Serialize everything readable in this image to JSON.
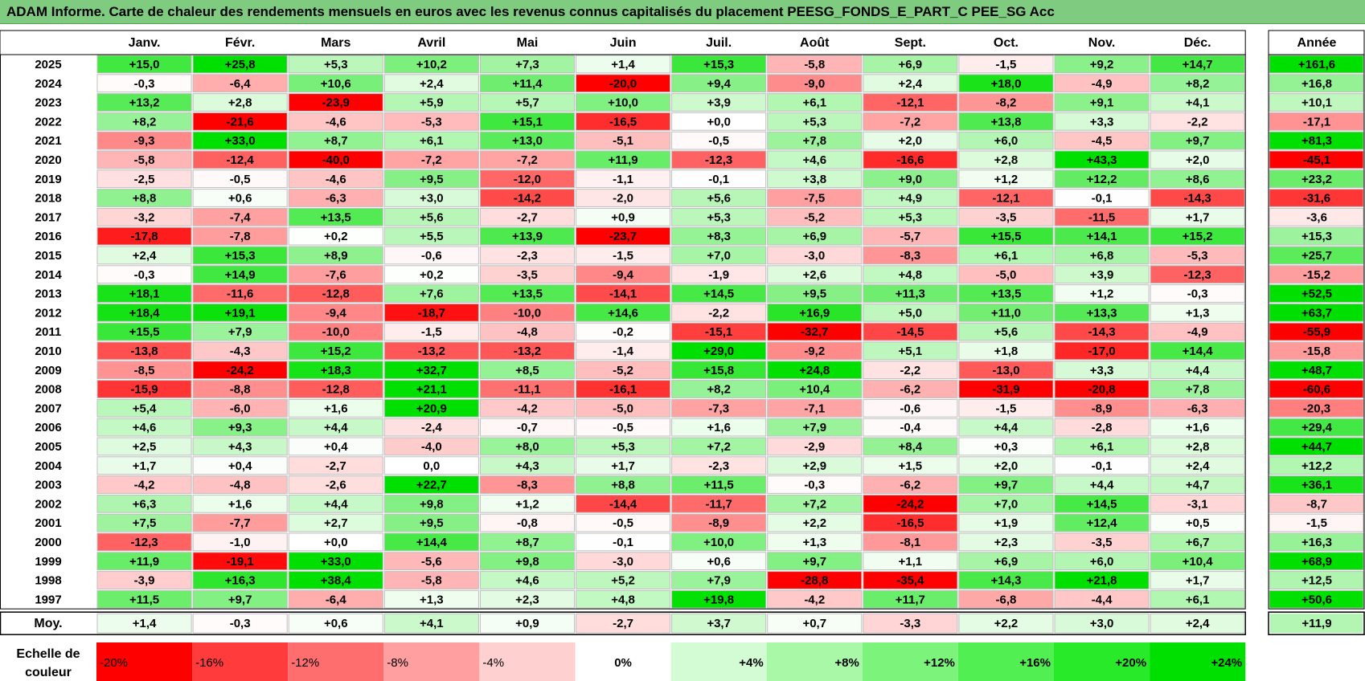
{
  "title": "ADAM Informe. Carte de chaleur des rendements mensuels en euros avec les revenus connus capitalisés du placement PEESG_FONDS_E_PART_C PEE_SG Acc",
  "chart_data": {
    "type": "heatmap",
    "title": "ADAM Informe. Carte de chaleur des rendements mensuels en euros avec les revenus connus capitalisés du placement PEESG_FONDS_E_PART_C PEE_SG Acc",
    "columns": [
      "Janv.",
      "Févr.",
      "Mars",
      "Avril",
      "Mai",
      "Juin",
      "Juil.",
      "Août",
      "Sept.",
      "Oct.",
      "Nov.",
      "Déc."
    ],
    "year_column_label": "Année",
    "rows": [
      {
        "year": "2025",
        "values": [
          "+15,0",
          "+25,8",
          "+5,3",
          "+10,2",
          "+7,3",
          "+1,4",
          "+15,3",
          "-5,8",
          "+6,9",
          "-1,5",
          "+9,2",
          "+14,7"
        ],
        "annual": "+161,6"
      },
      {
        "year": "2024",
        "values": [
          "-0,3",
          "-6,4",
          "+10,6",
          "+2,4",
          "+11,4",
          "-20,0",
          "+9,4",
          "-9,0",
          "+2,4",
          "+18,0",
          "-4,9",
          "+8,2"
        ],
        "annual": "+16,8"
      },
      {
        "year": "2023",
        "values": [
          "+13,2",
          "+2,8",
          "-23,9",
          "+5,9",
          "+5,7",
          "+10,0",
          "+3,9",
          "+6,1",
          "-12,1",
          "-8,2",
          "+9,1",
          "+4,1"
        ],
        "annual": "+10,1"
      },
      {
        "year": "2022",
        "values": [
          "+8,2",
          "-21,6",
          "-4,6",
          "-5,3",
          "+15,1",
          "-16,5",
          "+0,0",
          "+5,3",
          "-7,2",
          "+13,8",
          "+3,3",
          "-2,2"
        ],
        "annual": "-17,1"
      },
      {
        "year": "2021",
        "values": [
          "-9,3",
          "+33,0",
          "+8,7",
          "+6,1",
          "+13,0",
          "-5,1",
          "-0,5",
          "+7,8",
          "+2,0",
          "+6,0",
          "-4,5",
          "+9,7"
        ],
        "annual": "+81,3"
      },
      {
        "year": "2020",
        "values": [
          "-5,8",
          "-12,4",
          "-40,0",
          "-7,2",
          "-7,2",
          "+11,9",
          "-12,3",
          "+4,6",
          "-16,6",
          "+2,8",
          "+43,3",
          "+2,0"
        ],
        "annual": "-45,1"
      },
      {
        "year": "2019",
        "values": [
          "-2,5",
          "-0,5",
          "-4,6",
          "+9,5",
          "-12,0",
          "-1,1",
          "-0,1",
          "+3,8",
          "+9,0",
          "+1,2",
          "+12,2",
          "+8,6"
        ],
        "annual": "+23,2"
      },
      {
        "year": "2018",
        "values": [
          "+8,8",
          "+0,6",
          "-6,3",
          "+3,0",
          "-14,2",
          "-2,0",
          "+5,6",
          "-7,5",
          "+4,9",
          "-12,1",
          "-0,1",
          "-14,3"
        ],
        "annual": "-31,6"
      },
      {
        "year": "2017",
        "values": [
          "-3,2",
          "-7,4",
          "+13,5",
          "+5,6",
          "-2,7",
          "+0,9",
          "+5,3",
          "-5,2",
          "+5,3",
          "-3,5",
          "-11,5",
          "+1,7"
        ],
        "annual": "-3,6"
      },
      {
        "year": "2016",
        "values": [
          "-17,8",
          "-7,8",
          "+0,2",
          "+5,5",
          "+13,9",
          "-23,7",
          "+8,3",
          "+6,9",
          "-5,7",
          "+15,5",
          "+14,1",
          "+15,2"
        ],
        "annual": "+15,3"
      },
      {
        "year": "2015",
        "values": [
          "+2,4",
          "+15,3",
          "+8,9",
          "-0,6",
          "-2,3",
          "-1,5",
          "+7,0",
          "-3,0",
          "-8,3",
          "+6,1",
          "+6,8",
          "-5,3"
        ],
        "annual": "+25,7"
      },
      {
        "year": "2014",
        "values": [
          "-0,3",
          "+14,9",
          "-7,6",
          "+0,2",
          "-3,5",
          "-9,4",
          "-1,9",
          "+2,6",
          "+4,8",
          "-5,0",
          "+3,9",
          "-12,3"
        ],
        "annual": "-15,2"
      },
      {
        "year": "2013",
        "values": [
          "+18,1",
          "-11,6",
          "-12,8",
          "+7,6",
          "+13,5",
          "-14,1",
          "+14,5",
          "+9,5",
          "+11,3",
          "+13,5",
          "+1,2",
          "-0,3"
        ],
        "annual": "+52,5"
      },
      {
        "year": "2012",
        "values": [
          "+18,4",
          "+19,1",
          "-9,4",
          "-18,7",
          "-10,0",
          "+14,6",
          "-2,2",
          "+16,9",
          "+5,0",
          "+11,0",
          "+13,3",
          "+1,3"
        ],
        "annual": "+63,7"
      },
      {
        "year": "2011",
        "values": [
          "+15,5",
          "+7,9",
          "-10,0",
          "-1,5",
          "-4,8",
          "-0,2",
          "-15,1",
          "-32,7",
          "-14,5",
          "+5,6",
          "-14,3",
          "-4,9"
        ],
        "annual": "-55,9"
      },
      {
        "year": "2010",
        "values": [
          "-13,8",
          "-4,3",
          "+15,2",
          "-13,2",
          "-13,2",
          "-1,4",
          "+29,0",
          "-9,2",
          "+5,1",
          "+1,8",
          "-17,0",
          "+14,4"
        ],
        "annual": "-15,8"
      },
      {
        "year": "2009",
        "values": [
          "-8,5",
          "-24,2",
          "+18,3",
          "+32,7",
          "+8,5",
          "-5,2",
          "+15,8",
          "+24,8",
          "-2,2",
          "-13,0",
          "+3,3",
          "+4,4"
        ],
        "annual": "+48,7"
      },
      {
        "year": "2008",
        "values": [
          "-15,9",
          "-8,8",
          "-12,8",
          "+21,1",
          "-11,1",
          "-16,1",
          "+8,2",
          "+10,4",
          "-6,2",
          "-31,9",
          "-20,8",
          "+7,8"
        ],
        "annual": "-60,6"
      },
      {
        "year": "2007",
        "values": [
          "+5,4",
          "-6,0",
          "+1,6",
          "+20,9",
          "-4,2",
          "-5,0",
          "-7,3",
          "-7,1",
          "-0,6",
          "-1,5",
          "-8,9",
          "-6,3"
        ],
        "annual": "-20,3"
      },
      {
        "year": "2006",
        "values": [
          "+4,6",
          "+9,3",
          "+4,4",
          "-2,4",
          "-0,7",
          "-0,5",
          "+1,6",
          "+7,9",
          "-0,4",
          "+4,4",
          "-2,8",
          "+1,6"
        ],
        "annual": "+29,4"
      },
      {
        "year": "2005",
        "values": [
          "+2,5",
          "+4,3",
          "+0,4",
          "-4,0",
          "+8,0",
          "+5,3",
          "+7,2",
          "-2,9",
          "+8,4",
          "+0,3",
          "+6,1",
          "+2,8"
        ],
        "annual": "+44,7"
      },
      {
        "year": "2004",
        "values": [
          "+1,7",
          "+0,4",
          "-2,7",
          "0,0",
          "+4,3",
          "+1,7",
          "-2,3",
          "+2,9",
          "+1,5",
          "+2,0",
          "-0,1",
          "+2,4"
        ],
        "annual": "+12,2"
      },
      {
        "year": "2003",
        "values": [
          "-4,2",
          "-4,8",
          "-2,6",
          "+22,7",
          "-8,3",
          "+8,8",
          "+11,5",
          "-0,3",
          "-6,2",
          "+9,7",
          "+4,4",
          "+4,7"
        ],
        "annual": "+36,1"
      },
      {
        "year": "2002",
        "values": [
          "+6,3",
          "+1,6",
          "+4,4",
          "+9,8",
          "+1,2",
          "-14,4",
          "-11,7",
          "+7,2",
          "-24,2",
          "+7,0",
          "+14,5",
          "-3,1"
        ],
        "annual": "-8,7"
      },
      {
        "year": "2001",
        "values": [
          "+7,5",
          "-7,7",
          "+2,7",
          "+9,5",
          "-0,8",
          "-0,5",
          "-8,9",
          "+2,2",
          "-16,5",
          "+1,9",
          "+12,4",
          "+0,5"
        ],
        "annual": "-1,5"
      },
      {
        "year": "2000",
        "values": [
          "-12,3",
          "-1,0",
          "+0,0",
          "+14,4",
          "+8,7",
          "-0,1",
          "+10,0",
          "+1,3",
          "-8,1",
          "+2,3",
          "-3,5",
          "+6,7"
        ],
        "annual": "+16,3"
      },
      {
        "year": "1999",
        "values": [
          "+11,9",
          "-19,1",
          "+33,0",
          "-5,6",
          "+9,8",
          "-3,0",
          "+0,6",
          "+9,7",
          "+1,1",
          "+6,9",
          "+6,0",
          "+10,4"
        ],
        "annual": "+68,9"
      },
      {
        "year": "1998",
        "values": [
          "-3,9",
          "+16,3",
          "+38,4",
          "-5,8",
          "+4,6",
          "+5,2",
          "+7,9",
          "-28,8",
          "-35,4",
          "+14,3",
          "+21,8",
          "+1,7"
        ],
        "annual": "+12,5"
      },
      {
        "year": "1997",
        "values": [
          "+11,5",
          "+9,7",
          "-6,4",
          "+1,3",
          "+2,3",
          "+4,8",
          "+19,8",
          "-4,2",
          "+11,7",
          "-6,8",
          "-4,4",
          "+6,1"
        ],
        "annual": "+50,6"
      }
    ],
    "average": {
      "label": "Moy.",
      "values": [
        "+1,4",
        "-0,3",
        "+0,6",
        "+4,1",
        "+0,9",
        "-2,7",
        "+3,7",
        "+0,7",
        "-3,3",
        "+2,2",
        "+3,0",
        "+2,4"
      ],
      "annual": "+11,9"
    },
    "scale": {
      "label_line1": "Echelle de",
      "label_line2": "couleur",
      "entries": [
        {
          "label": "-20%",
          "color": "#ff0000",
          "align": "left"
        },
        {
          "label": "-16%",
          "color": "#ff3b3b",
          "align": "left"
        },
        {
          "label": "-12%",
          "color": "#ff6e6e",
          "align": "left"
        },
        {
          "label": "-8%",
          "color": "#ff9f9f",
          "align": "left"
        },
        {
          "label": "-4%",
          "color": "#ffd0d0",
          "align": "left"
        },
        {
          "label": "0%",
          "color": "#ffffff",
          "align": "center"
        },
        {
          "label": "+4%",
          "color": "#d4fcd4",
          "align": "right"
        },
        {
          "label": "+8%",
          "color": "#a8f8a8",
          "align": "right"
        },
        {
          "label": "+12%",
          "color": "#7cf47c",
          "align": "right"
        },
        {
          "label": "+16%",
          "color": "#52ef52",
          "align": "right"
        },
        {
          "label": "+20%",
          "color": "#28ea28",
          "align": "right"
        },
        {
          "label": "+24%",
          "color": "#00e000",
          "align": "right"
        }
      ]
    },
    "colors": {
      "title_bg": "#7fcb7f",
      "negative_max": "#ff0000",
      "positive_max": "#00e000",
      "neutral": "#ffffff",
      "grid": "#bfbfbf"
    }
  }
}
